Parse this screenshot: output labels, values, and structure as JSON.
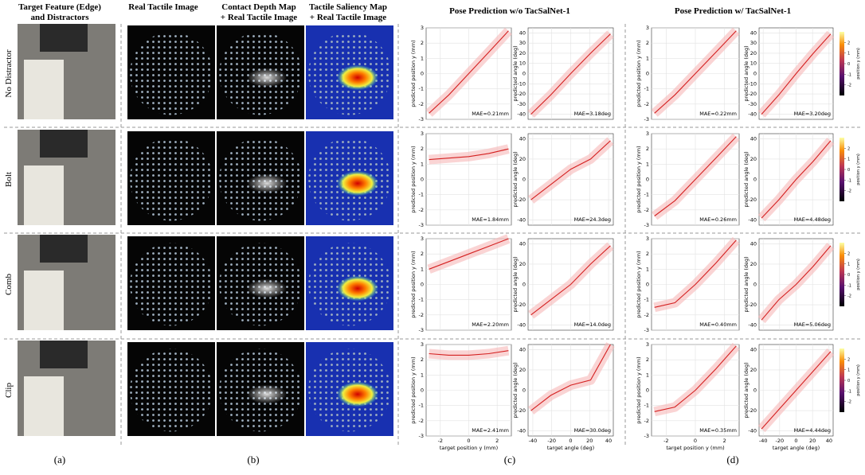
{
  "headers": {
    "a": [
      "Target Feature (Edge)",
      "and Distractors"
    ],
    "b1": [
      "Real Tactile Image"
    ],
    "b2": [
      "Contact Depth Map",
      "+ Real Tactile Image"
    ],
    "b3": [
      "Tactile Saliency Map",
      "+ Real Tactile Image"
    ],
    "c": "Pose Prediction w/o TacSalNet-1",
    "d": "Pose Prediction w/ TacSalNet-1"
  },
  "rows": [
    "No Distractor",
    "Bolt",
    "Comb",
    "Clip"
  ],
  "panel_labels": [
    "(a)",
    "(b)",
    "(c)",
    "(d)"
  ],
  "axes": {
    "position": {
      "ylabel": "predicted position y (mm)",
      "xlabel": "target position y (mm)",
      "xlim": [
        -3,
        3
      ],
      "ylim": [
        -3,
        3
      ],
      "xticks": [
        -2,
        0,
        2
      ]
    },
    "angle": {
      "ylabel": "predicted angle (deg)",
      "xlabel": "target angle (deg)",
      "xlim": [
        -45,
        45
      ],
      "ylim": [
        -45,
        45
      ],
      "xticks": [
        -40,
        -20,
        0,
        20,
        40
      ]
    }
  },
  "colorbar": {
    "label": "position y (mm)",
    "lim": [
      -3,
      3
    ],
    "ticks": [
      -2,
      -1,
      0,
      1,
      2
    ]
  },
  "panel_c": [
    [
      {
        "mae": "MAE=0.21mm",
        "yticks": [
          -3,
          -2,
          -1,
          0,
          1,
          2,
          3
        ],
        "trend_x": [
          -2.8,
          -1.4,
          0,
          1.4,
          2.8
        ],
        "trend_y": [
          -2.6,
          -1.4,
          0,
          1.4,
          2.8
        ]
      },
      {
        "mae": "MAE=3.18deg",
        "yticks": [
          -40,
          -30,
          -20,
          -10,
          0,
          10,
          20,
          30,
          40
        ],
        "trend_x": [
          -42,
          -21,
          0,
          21,
          42
        ],
        "trend_y": [
          -40,
          -21,
          0,
          20,
          39
        ]
      }
    ],
    [
      {
        "mae": "MAE=1.84mm",
        "yticks": [
          -3,
          -2,
          -1,
          0,
          1,
          2,
          3
        ],
        "trend_x": [
          -2.8,
          -1.4,
          0,
          1.4,
          2.8
        ],
        "trend_y": [
          1.3,
          1.4,
          1.5,
          1.7,
          2.0
        ]
      },
      {
        "mae": "MAE=24.3deg",
        "yticks": [
          -40,
          -20,
          0,
          20,
          40
        ],
        "trend_x": [
          -42,
          -21,
          0,
          21,
          42
        ],
        "trend_y": [
          -20,
          -5,
          10,
          20,
          38
        ]
      }
    ],
    [
      {
        "mae": "MAE=2.20mm",
        "yticks": [
          -3,
          -2,
          -1,
          0,
          1,
          2,
          3
        ],
        "trend_x": [
          -2.8,
          -1.4,
          0,
          1.4,
          2.8
        ],
        "trend_y": [
          1.0,
          1.5,
          2.0,
          2.5,
          3.0
        ]
      },
      {
        "mae": "MAE=14.0deg",
        "yticks": [
          -40,
          -20,
          0,
          20,
          40
        ],
        "trend_x": [
          -42,
          -21,
          0,
          21,
          42
        ],
        "trend_y": [
          -30,
          -15,
          0,
          20,
          38
        ]
      }
    ],
    [
      {
        "mae": "MAE=2.41mm",
        "yticks": [
          -3,
          -2,
          -1,
          0,
          1,
          2,
          3
        ],
        "trend_x": [
          -2.8,
          -1.4,
          0,
          1.4,
          2.8
        ],
        "trend_y": [
          2.4,
          2.3,
          2.3,
          2.4,
          2.6
        ]
      },
      {
        "mae": "MAE=30.0deg",
        "yticks": [
          -40,
          -20,
          0,
          20,
          40
        ],
        "trend_x": [
          -42,
          -21,
          0,
          21,
          42
        ],
        "trend_y": [
          -20,
          -5,
          5,
          10,
          45
        ]
      }
    ]
  ],
  "panel_d": [
    [
      {
        "mae": "MAE=0.22mm",
        "yticks": [
          -3,
          -2,
          -1,
          0,
          1,
          2,
          3
        ],
        "trend_x": [
          -2.8,
          -1.4,
          0,
          1.4,
          2.8
        ],
        "trend_y": [
          -2.6,
          -1.4,
          0,
          1.4,
          2.8
        ]
      },
      {
        "mae": "MAE=3.20deg",
        "yticks": [
          -40,
          -30,
          -20,
          -10,
          0,
          10,
          20,
          30,
          40
        ],
        "trend_x": [
          -42,
          -21,
          0,
          21,
          42
        ],
        "trend_y": [
          -40,
          -21,
          0,
          20,
          39
        ]
      }
    ],
    [
      {
        "mae": "MAE=0.26mm",
        "yticks": [
          -3,
          -2,
          -1,
          0,
          1,
          2,
          3
        ],
        "trend_x": [
          -2.8,
          -1.4,
          0,
          1.4,
          2.8
        ],
        "trend_y": [
          -2.4,
          -1.4,
          0,
          1.4,
          2.8
        ]
      },
      {
        "mae": "MAE=4.48deg",
        "yticks": [
          -40,
          -20,
          0,
          20,
          40
        ],
        "trend_x": [
          -42,
          -21,
          0,
          21,
          42
        ],
        "trend_y": [
          -38,
          -20,
          0,
          18,
          38
        ]
      }
    ],
    [
      {
        "mae": "MAE=0.40mm",
        "yticks": [
          -3,
          -2,
          -1,
          0,
          1,
          2,
          3
        ],
        "trend_x": [
          -2.8,
          -1.4,
          0,
          1.4,
          2.8
        ],
        "trend_y": [
          -1.5,
          -1.2,
          0,
          1.4,
          2.9
        ]
      },
      {
        "mae": "MAE=5.06deg",
        "yticks": [
          -40,
          -20,
          0,
          20,
          40
        ],
        "trend_x": [
          -42,
          -21,
          0,
          21,
          42
        ],
        "trend_y": [
          -35,
          -15,
          0,
          18,
          38
        ]
      }
    ],
    [
      {
        "mae": "MAE=0.35mm",
        "yticks": [
          -3,
          -2,
          -1,
          0,
          1,
          2,
          3
        ],
        "trend_x": [
          -2.8,
          -1.4,
          0,
          1.4,
          2.8
        ],
        "trend_y": [
          -1.4,
          -1.1,
          0,
          1.4,
          2.9
        ]
      },
      {
        "mae": "MAE=4.44deg",
        "yticks": [
          -40,
          -20,
          0,
          20,
          40
        ],
        "trend_x": [
          -42,
          -21,
          0,
          21,
          42
        ],
        "trend_y": [
          -38,
          -19,
          0,
          19,
          38
        ]
      }
    ]
  ]
}
